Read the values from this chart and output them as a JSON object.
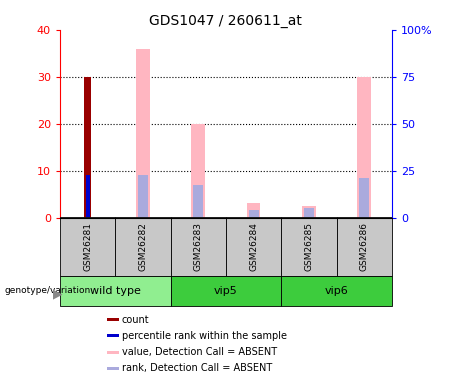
{
  "title": "GDS1047 / 260611_at",
  "samples": [
    "GSM26281",
    "GSM26282",
    "GSM26283",
    "GSM26284",
    "GSM26285",
    "GSM26286"
  ],
  "group_names": [
    "wild type",
    "vip5",
    "vip6"
  ],
  "group_ranges": [
    [
      0,
      1
    ],
    [
      2,
      3
    ],
    [
      4,
      5
    ]
  ],
  "group_colors": [
    "#90EE90",
    "#3DCC3D",
    "#3DCC3D"
  ],
  "count_values": [
    30,
    0,
    0,
    0,
    0,
    0
  ],
  "count_color": "#990000",
  "percentile_values": [
    9,
    0,
    0,
    0,
    0,
    0
  ],
  "percentile_color": "#0000CC",
  "value_absent": [
    0,
    36,
    20,
    3,
    2.5,
    30
  ],
  "value_absent_color": "#FFB6C1",
  "rank_absent": [
    0,
    9,
    7,
    1.5,
    2,
    8.5
  ],
  "rank_absent_color": "#AAAADD",
  "ylim_left": [
    0,
    40
  ],
  "ylim_right": [
    0,
    100
  ],
  "yticks_left": [
    0,
    10,
    20,
    30,
    40
  ],
  "yticks_right": [
    0,
    25,
    50,
    75,
    100
  ],
  "ytick_labels_right": [
    "0",
    "25",
    "50",
    "75",
    "100%"
  ],
  "legend_items": [
    {
      "label": "count",
      "color": "#990000"
    },
    {
      "label": "percentile rank within the sample",
      "color": "#0000CC"
    },
    {
      "label": "value, Detection Call = ABSENT",
      "color": "#FFB6C1"
    },
    {
      "label": "rank, Detection Call = ABSENT",
      "color": "#AAAADD"
    }
  ],
  "sample_box_color": "#C8C8C8",
  "pink_bar_width": 0.25,
  "blue_bar_width": 0.18,
  "red_bar_width": 0.12,
  "navy_bar_width": 0.07
}
